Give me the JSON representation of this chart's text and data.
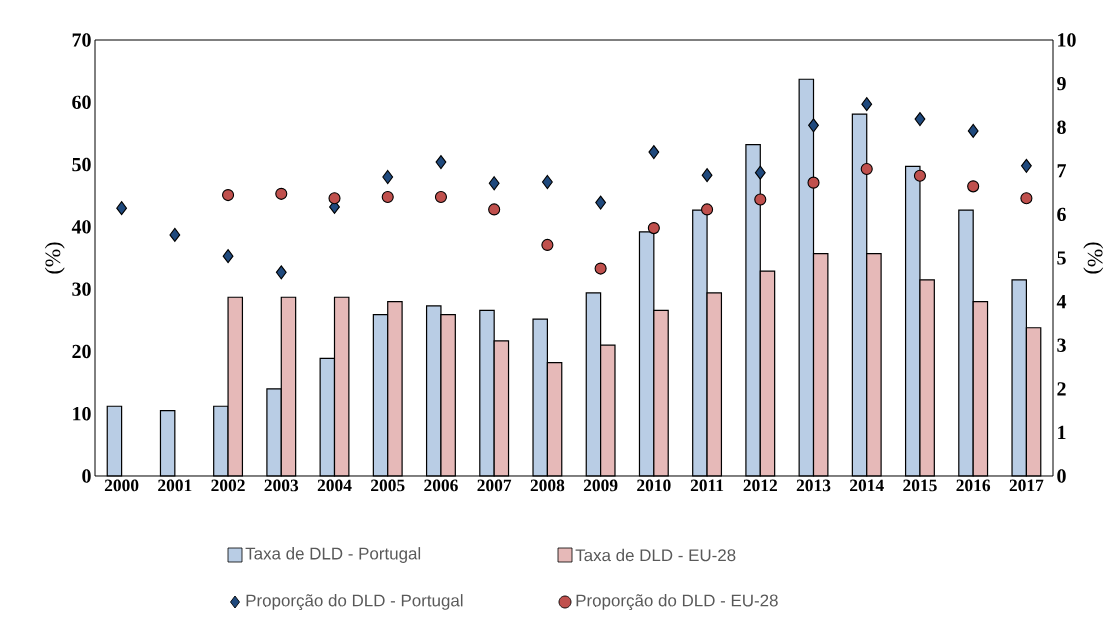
{
  "chart_data": {
    "type": "bar",
    "categories": [
      "2000",
      "2001",
      "2002",
      "2003",
      "2004",
      "2005",
      "2006",
      "2007",
      "2008",
      "2009",
      "2010",
      "2011",
      "2012",
      "2013",
      "2014",
      "2015",
      "2016",
      "2017"
    ],
    "ylabel": "(%)",
    "y2label": "(%)",
    "ylim": [
      0,
      70
    ],
    "yticks": [
      0,
      10,
      20,
      30,
      40,
      50,
      60,
      70
    ],
    "y2lim": [
      0,
      10
    ],
    "y2ticks": [
      0,
      1,
      2,
      3,
      4,
      5,
      6,
      7,
      8,
      9,
      10
    ],
    "legend": "bottom",
    "series": [
      {
        "name": "Taxa de DLD - Portugal",
        "axis": "y2",
        "color": "#b9cde5",
        "values": [
          1.6,
          1.5,
          1.6,
          2.0,
          2.7,
          3.7,
          3.9,
          3.8,
          3.6,
          4.2,
          5.6,
          6.1,
          7.6,
          9.1,
          8.3,
          7.1,
          6.1,
          4.5
        ]
      },
      {
        "name": "Taxa de DLD - EU-28",
        "axis": "y2",
        "color": "#e6b9b8",
        "values": [
          null,
          null,
          4.1,
          4.1,
          4.1,
          4.0,
          3.7,
          3.1,
          2.6,
          3.0,
          3.8,
          4.2,
          4.7,
          5.1,
          5.1,
          4.5,
          4.0,
          3.4
        ]
      },
      {
        "name": "Proporção do DLD - Portugal",
        "type": "scatter",
        "marker": "diamond",
        "color": "#1f497d",
        "values": [
          43.0,
          38.7,
          35.3,
          32.7,
          43.2,
          48.0,
          50.4,
          47.0,
          47.2,
          43.9,
          52.0,
          48.3,
          48.7,
          56.3,
          59.7,
          57.3,
          55.4,
          49.8
        ]
      },
      {
        "name": "Proporção do DLD - EU-28",
        "type": "scatter",
        "marker": "circle",
        "color": "#c0504d",
        "values": [
          null,
          null,
          45.1,
          45.3,
          44.6,
          44.8,
          44.8,
          42.8,
          37.1,
          33.3,
          39.8,
          42.8,
          44.4,
          47.1,
          49.3,
          48.2,
          46.5,
          44.6
        ]
      }
    ]
  }
}
